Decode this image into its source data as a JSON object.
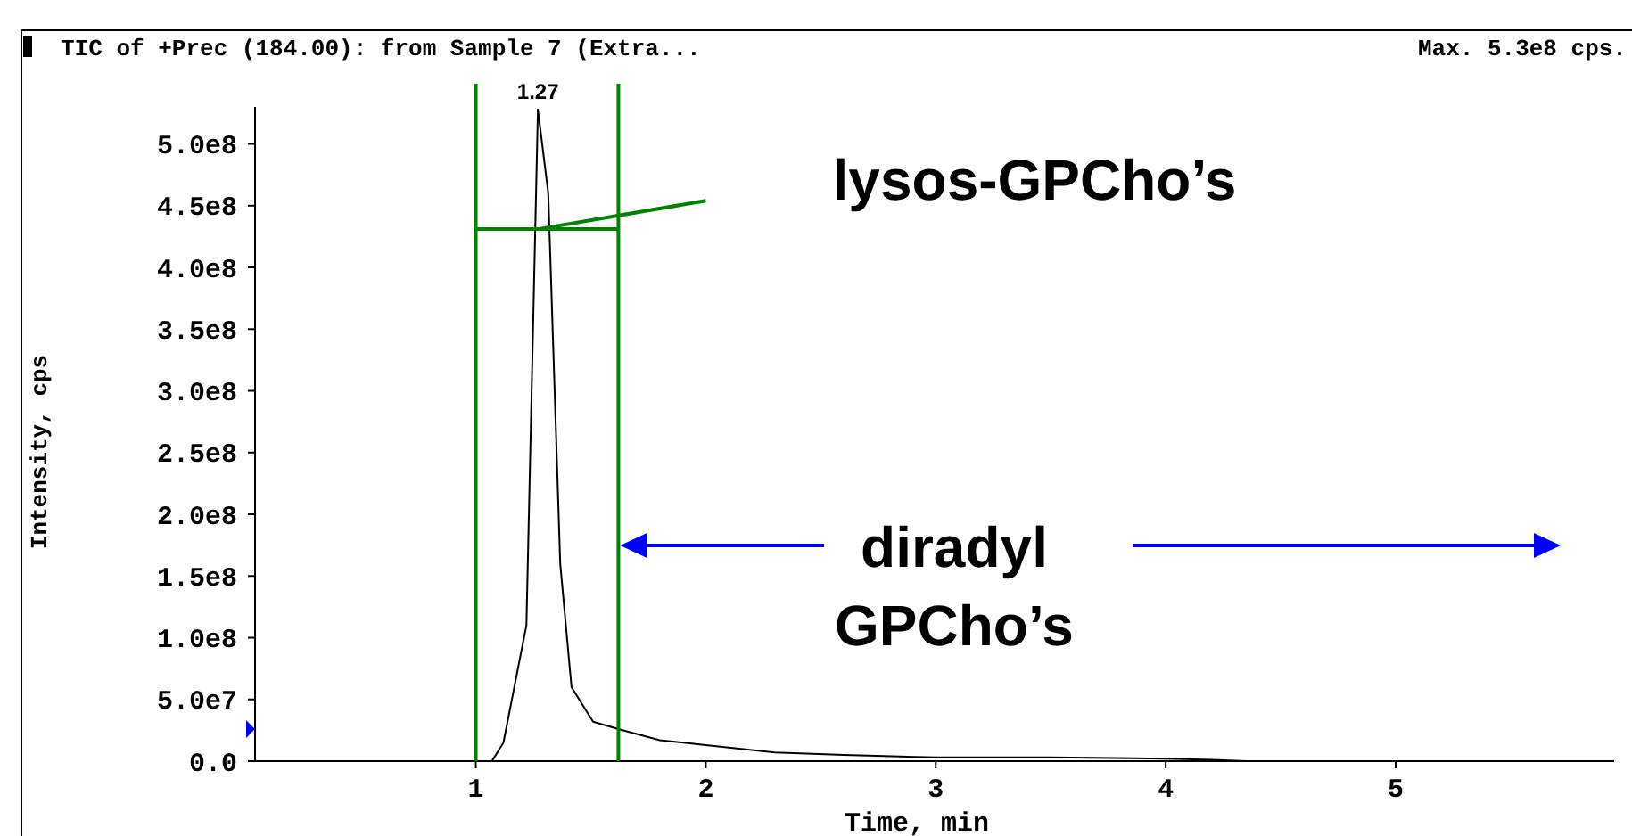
{
  "chart_data": {
    "type": "line",
    "title": "TIC of +Prec (184.00): from Sample 7 (Extra...",
    "subtitle": "Max. 5.3e8 cps.",
    "xlabel": "Time, min",
    "ylabel": "Intensity, cps",
    "x": [
      0.04,
      1.0,
      1.07,
      1.12,
      1.22,
      1.27,
      1.315,
      1.367,
      1.416,
      1.51,
      1.62,
      1.8,
      2.0,
      2.3,
      2.6,
      3.0,
      3.5,
      4.0,
      4.2,
      4.35,
      5.0,
      5.95
    ],
    "series": [
      {
        "color": "#000000",
        "values": [
          0,
          0,
          0,
          15000000.0,
          110000000.0,
          528000000.0,
          460000000.0,
          160000000.0,
          60000000.0,
          32000000.0,
          26000000.0,
          17000000.0,
          13000000.0,
          7000000.0,
          5000000.0,
          3000000.0,
          3000000.0,
          2000000.0,
          1000000.0,
          0,
          0,
          0
        ]
      },
      {
        "color": "#008000",
        "x": [
          1.0,
          1.62
        ],
        "values": [
          431000000.0,
          431000000.0
        ]
      },
      {
        "color": "#008000",
        "x": [
          1.27,
          2.0
        ],
        "values": [
          431000000.0,
          454000000.0
        ]
      }
    ],
    "xlim": [
      0.04,
      5.95
    ],
    "xticks": [
      1,
      2,
      3,
      4,
      5
    ],
    "ylim": [
      0,
      530000000.0
    ],
    "yticks": [
      {
        "value": 0,
        "label": "0.0"
      },
      {
        "value": 50000000.0,
        "label": "5.0e7"
      },
      {
        "value": 100000000.0,
        "label": "1.0e8"
      },
      {
        "value": 150000000.0,
        "label": "1.5e8"
      },
      {
        "value": 200000000.0,
        "label": "2.0e8"
      },
      {
        "value": 250000000.0,
        "label": "2.5e8"
      },
      {
        "value": 300000000.0,
        "label": "3.0e8"
      },
      {
        "value": 350000000.0,
        "label": "3.5e8"
      },
      {
        "value": 400000000.0,
        "label": "4.0e8"
      },
      {
        "value": 450000000.0,
        "label": "4.5e8"
      },
      {
        "value": 500000000.0,
        "label": "5.0e8"
      }
    ],
    "grid": false,
    "line_style": "solid",
    "ref_lines": [
      {
        "axis": "x",
        "value": 1.0,
        "color": "#008000"
      },
      {
        "axis": "x",
        "value": 1.62,
        "color": "#008000"
      }
    ],
    "annotations": [
      {
        "text": "1.27",
        "x": 1.27,
        "y": 528000000.0
      },
      "lysos-GPCho’s",
      "diradyl GPCho’s"
    ]
  }
}
